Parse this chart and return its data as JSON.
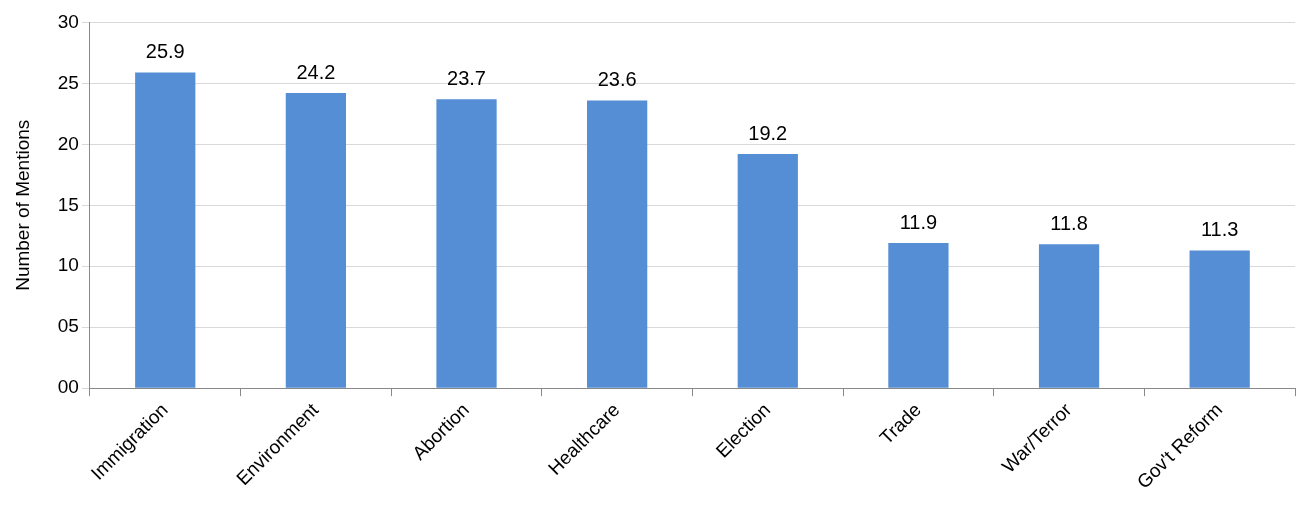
{
  "chart_data": {
    "type": "bar",
    "ylabel": "Number of Mentions",
    "categories": [
      "Immigration",
      "Environment",
      "Abortion",
      "Healthcare",
      "Election",
      "Trade",
      "War/Terror",
      "Gov't Reform"
    ],
    "values": [
      25.9,
      24.2,
      23.7,
      23.6,
      19.2,
      11.9,
      11.8,
      11.3
    ],
    "color": "#558ed5",
    "ylim": [
      0,
      30
    ],
    "yticks": [
      {
        "value": 0,
        "label": "00"
      },
      {
        "value": 5,
        "label": "05"
      },
      10,
      15,
      20,
      25,
      30
    ],
    "grid": "y",
    "data_labels": true
  }
}
